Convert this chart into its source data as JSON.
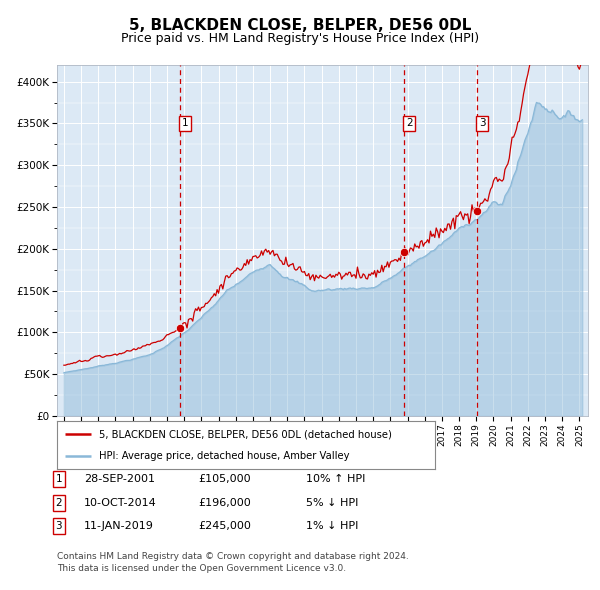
{
  "title": "5, BLACKDEN CLOSE, BELPER, DE56 0DL",
  "subtitle": "Price paid vs. HM Land Registry's House Price Index (HPI)",
  "title_fontsize": 11,
  "subtitle_fontsize": 9,
  "plot_bg_color": "#dce9f5",
  "xlim": [
    1994.6,
    2025.5
  ],
  "ylim": [
    0,
    420000
  ],
  "yticks": [
    0,
    50000,
    100000,
    150000,
    200000,
    250000,
    300000,
    350000,
    400000
  ],
  "ytick_labels": [
    "£0",
    "£50K",
    "£100K",
    "£150K",
    "£200K",
    "£250K",
    "£300K",
    "£350K",
    "£400K"
  ],
  "sale_color": "#cc0000",
  "hpi_color": "#8ab8d8",
  "sale_label": "5, BLACKDEN CLOSE, BELPER, DE56 0DL (detached house)",
  "hpi_label": "HPI: Average price, detached house, Amber Valley",
  "vline_color": "#cc0000",
  "marker_color": "#cc0000",
  "purchases": [
    {
      "num": 1,
      "date_label": "28-SEP-2001",
      "price": 105000,
      "pct": "10%",
      "direction": "↑",
      "year": 2001.75
    },
    {
      "num": 2,
      "date_label": "10-OCT-2014",
      "price": 196000,
      "pct": "5%",
      "direction": "↓",
      "year": 2014.78
    },
    {
      "num": 3,
      "date_label": "11-JAN-2019",
      "price": 245000,
      "pct": "1%",
      "direction": "↓",
      "year": 2019.03
    }
  ],
  "footnote": "Contains HM Land Registry data © Crown copyright and database right 2024.\nThis data is licensed under the Open Government Licence v3.0.",
  "legend_box_color": "#cc0000"
}
